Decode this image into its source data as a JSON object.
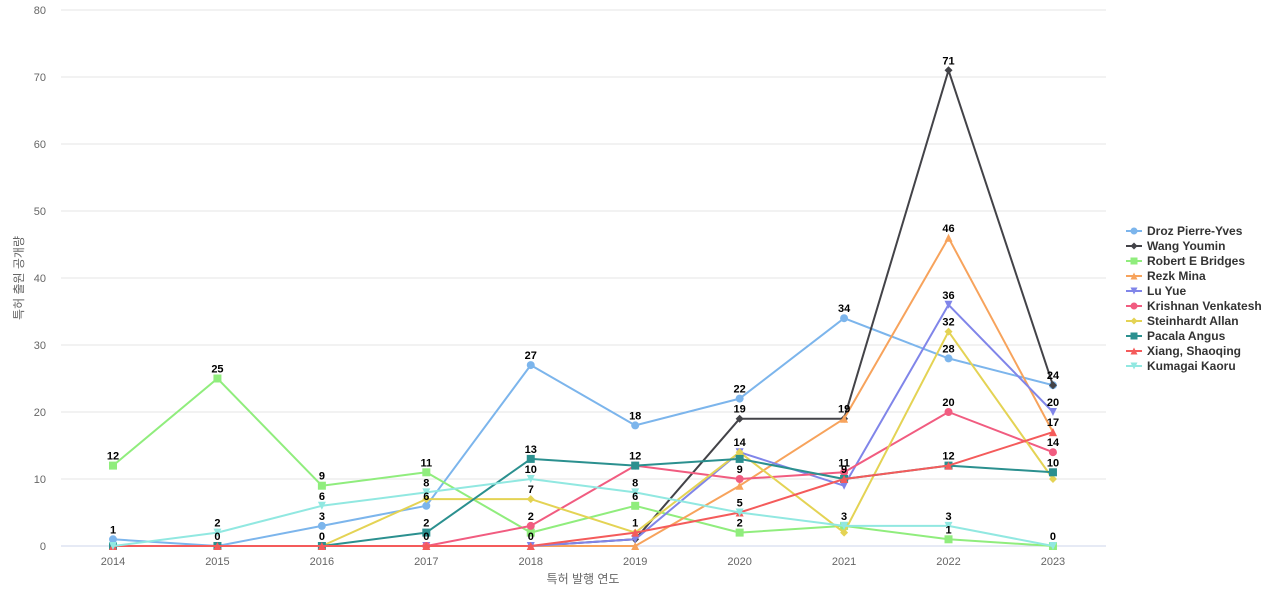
{
  "chart_data": {
    "type": "line",
    "title": "",
    "xlabel": "특허 발행 연도",
    "ylabel": "특허 출원 공개량",
    "ylim": [
      0,
      80
    ],
    "yticks": [
      0,
      10,
      20,
      30,
      40,
      50,
      60,
      70,
      80
    ],
    "categories": [
      "2014",
      "2015",
      "2016",
      "2017",
      "2018",
      "2019",
      "2020",
      "2021",
      "2022",
      "2023"
    ],
    "grid": true,
    "legend_position": "right",
    "series": [
      {
        "name": "Droz Pierre-Yves",
        "color": "#7cb5ec",
        "marker": "circle",
        "values": [
          1,
          0,
          3,
          6,
          27,
          18,
          22,
          34,
          28,
          24
        ]
      },
      {
        "name": "Wang Youmin",
        "color": "#434348",
        "marker": "diamond",
        "values": [
          0,
          0,
          0,
          0,
          0,
          1,
          19,
          19,
          71,
          24
        ]
      },
      {
        "name": "Robert E Bridges",
        "color": "#90ed7d",
        "marker": "square",
        "values": [
          12,
          25,
          9,
          11,
          2,
          6,
          2,
          3,
          1,
          0
        ]
      },
      {
        "name": "Rezk Mina",
        "color": "#f7a35c",
        "marker": "triangle",
        "values": [
          0,
          0,
          0,
          0,
          0,
          0,
          9,
          19,
          46,
          17
        ]
      },
      {
        "name": "Lu Yue",
        "color": "#8085e9",
        "marker": "triangle-down",
        "values": [
          0,
          0,
          0,
          0,
          0,
          1,
          14,
          9,
          36,
          20
        ]
      },
      {
        "name": "Krishnan Venkatesh",
        "color": "#f15c80",
        "marker": "circle",
        "values": [
          0,
          0,
          0,
          0,
          3,
          12,
          10,
          11,
          20,
          14
        ]
      },
      {
        "name": "Steinhardt Allan",
        "color": "#e4d354",
        "marker": "diamond",
        "values": [
          0,
          0,
          0,
          7,
          7,
          2,
          14,
          2,
          32,
          10
        ]
      },
      {
        "name": "Pacala Angus",
        "color": "#2b908f",
        "marker": "square",
        "values": [
          0,
          0,
          0,
          2,
          13,
          12,
          13,
          10,
          12,
          11
        ]
      },
      {
        "name": "Xiang, Shaoqing",
        "color": "#f45b5b",
        "marker": "triangle",
        "values": [
          0,
          0,
          0,
          0,
          0,
          2,
          5,
          10,
          12,
          17
        ]
      },
      {
        "name": "Kumagai Kaoru",
        "color": "#91e8e1",
        "marker": "triangle-down",
        "values": [
          0,
          2,
          6,
          8,
          10,
          8,
          5,
          3,
          3,
          0
        ]
      }
    ],
    "data_labels": [
      {
        "text": "1",
        "category": "2014",
        "value": 1
      },
      {
        "text": "12",
        "category": "2014",
        "value": 12
      },
      {
        "text": "2",
        "category": "2015",
        "value": 2
      },
      {
        "text": "0",
        "category": "2015",
        "value": 0
      },
      {
        "text": "25",
        "category": "2015",
        "value": 25
      },
      {
        "text": "3",
        "category": "2016",
        "value": 3
      },
      {
        "text": "0",
        "category": "2016",
        "value": 0
      },
      {
        "text": "6",
        "category": "2016",
        "value": 6
      },
      {
        "text": "9",
        "category": "2016",
        "value": 9
      },
      {
        "text": "11",
        "category": "2017",
        "value": 11
      },
      {
        "text": "8",
        "category": "2017",
        "value": 8
      },
      {
        "text": "6",
        "category": "2017",
        "value": 6
      },
      {
        "text": "2",
        "category": "2017",
        "value": 2
      },
      {
        "text": "0",
        "category": "2017",
        "value": 0
      },
      {
        "text": "27",
        "category": "2018",
        "value": 27
      },
      {
        "text": "13",
        "category": "2018",
        "value": 13
      },
      {
        "text": "10",
        "category": "2018",
        "value": 10
      },
      {
        "text": "7",
        "category": "2018",
        "value": 7
      },
      {
        "text": "2",
        "category": "2018",
        "value": 3
      },
      {
        "text": "0",
        "category": "2018",
        "value": 0
      },
      {
        "text": "18",
        "category": "2019",
        "value": 18
      },
      {
        "text": "12",
        "category": "2019",
        "value": 12
      },
      {
        "text": "8",
        "category": "2019",
        "value": 8
      },
      {
        "text": "6",
        "category": "2019",
        "value": 6
      },
      {
        "text": "1",
        "category": "2019",
        "value": 2
      },
      {
        "text": "22",
        "category": "2020",
        "value": 22
      },
      {
        "text": "19",
        "category": "2020",
        "value": 19
      },
      {
        "text": "14",
        "category": "2020",
        "value": 14
      },
      {
        "text": "9",
        "category": "2020",
        "value": 10
      },
      {
        "text": "5",
        "category": "2020",
        "value": 5
      },
      {
        "text": "2",
        "category": "2020",
        "value": 2
      },
      {
        "text": "34",
        "category": "2021",
        "value": 34
      },
      {
        "text": "19",
        "category": "2021",
        "value": 19
      },
      {
        "text": "11",
        "category": "2021",
        "value": 11
      },
      {
        "text": "9",
        "category": "2021",
        "value": 10
      },
      {
        "text": "3",
        "category": "2021",
        "value": 3
      },
      {
        "text": "71",
        "category": "2022",
        "value": 71
      },
      {
        "text": "46",
        "category": "2022",
        "value": 46
      },
      {
        "text": "36",
        "category": "2022",
        "value": 36
      },
      {
        "text": "32",
        "category": "2022",
        "value": 32
      },
      {
        "text": "28",
        "category": "2022",
        "value": 28
      },
      {
        "text": "20",
        "category": "2022",
        "value": 20
      },
      {
        "text": "12",
        "category": "2022",
        "value": 12
      },
      {
        "text": "3",
        "category": "2022",
        "value": 3
      },
      {
        "text": "1",
        "category": "2022",
        "value": 1
      },
      {
        "text": "24",
        "category": "2023",
        "value": 24
      },
      {
        "text": "20",
        "category": "2023",
        "value": 20
      },
      {
        "text": "17",
        "category": "2023",
        "value": 17
      },
      {
        "text": "14",
        "category": "2023",
        "value": 14
      },
      {
        "text": "10",
        "category": "2023",
        "value": 11
      },
      {
        "text": "0",
        "category": "2023",
        "value": 0
      }
    ]
  }
}
